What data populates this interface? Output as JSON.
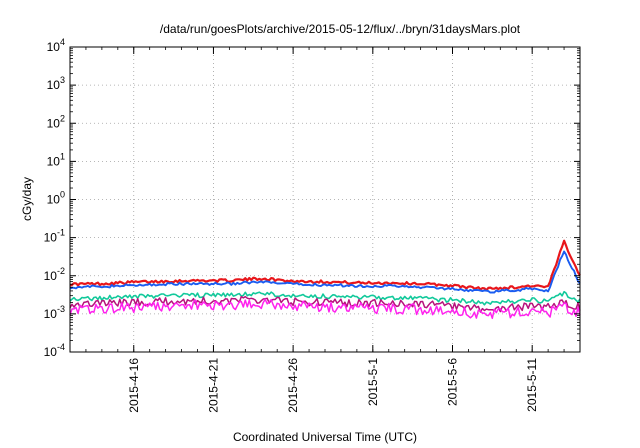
{
  "chart_data": {
    "type": "line",
    "title": "/data/run/goesPlots/archive/2015-05-12/flux/../bryn/31daysMars.plot",
    "xlabel": "Coordinated Universal Time (UTC)",
    "ylabel": "cGy/day",
    "yscale": "log",
    "ylim": [
      0.0001,
      10000
    ],
    "xlim": [
      "2015-04-12",
      "2015-05-14"
    ],
    "grid": true,
    "y_ticks": [
      {
        "base": "10",
        "exp": "-4",
        "value": 0.0001
      },
      {
        "base": "10",
        "exp": "-3",
        "value": 0.001
      },
      {
        "base": "10",
        "exp": "-2",
        "value": 0.01
      },
      {
        "base": "10",
        "exp": "-1",
        "value": 0.1
      },
      {
        "base": "10",
        "exp": "0",
        "value": 1
      },
      {
        "base": "10",
        "exp": "1",
        "value": 10
      },
      {
        "base": "10",
        "exp": "2",
        "value": 100
      },
      {
        "base": "10",
        "exp": "3",
        "value": 1000
      },
      {
        "base": "10",
        "exp": "4",
        "value": 10000
      }
    ],
    "x_ticks": [
      "2015-4-16",
      "2015-4-21",
      "2015-4-26",
      "2015-5-1",
      "2015-5-6",
      "2015-5-11"
    ],
    "x": [
      "2015-04-12",
      "2015-04-14",
      "2015-04-16",
      "2015-04-18",
      "2015-04-20",
      "2015-04-22",
      "2015-04-24",
      "2015-04-26",
      "2015-04-28",
      "2015-04-30",
      "2015-05-02",
      "2015-05-04",
      "2015-05-06",
      "2015-05-08",
      "2015-05-10",
      "2015-05-11",
      "2015-05-12",
      "2015-05-13",
      "2015-05-14"
    ],
    "series": [
      {
        "color": "#e8161b",
        "values": [
          0.006,
          0.0062,
          0.0068,
          0.0072,
          0.0075,
          0.0075,
          0.0085,
          0.0072,
          0.007,
          0.0065,
          0.0065,
          0.0062,
          0.0055,
          0.0045,
          0.005,
          0.0055,
          0.005,
          0.08,
          0.01
        ]
      },
      {
        "color": "#1a5cf0",
        "values": [
          0.005,
          0.0052,
          0.0056,
          0.006,
          0.0062,
          0.0062,
          0.0068,
          0.006,
          0.0058,
          0.0054,
          0.0054,
          0.005,
          0.0046,
          0.0038,
          0.0042,
          0.0046,
          0.004,
          0.045,
          0.006
        ]
      },
      {
        "color": "#12c99b",
        "values": [
          0.0025,
          0.0026,
          0.0028,
          0.003,
          0.0031,
          0.0031,
          0.0034,
          0.003,
          0.0029,
          0.0027,
          0.0027,
          0.0025,
          0.0023,
          0.0019,
          0.0021,
          0.0023,
          0.0021,
          0.0035,
          0.0022
        ]
      },
      {
        "color": "#b7127c",
        "values": [
          0.0018,
          0.0019,
          0.002,
          0.0021,
          0.0022,
          0.0022,
          0.0024,
          0.0021,
          0.002,
          0.0019,
          0.0019,
          0.0018,
          0.0016,
          0.0013,
          0.0015,
          0.0016,
          0.0015,
          0.002,
          0.0015
        ]
      },
      {
        "color": "#ff22ee",
        "values": [
          0.0013,
          0.0014,
          0.0015,
          0.0016,
          0.0017,
          0.0017,
          0.0018,
          0.0016,
          0.0015,
          0.0014,
          0.0014,
          0.0013,
          0.0012,
          0.001,
          0.0011,
          0.0012,
          0.0011,
          0.0015,
          0.0011
        ]
      }
    ]
  }
}
